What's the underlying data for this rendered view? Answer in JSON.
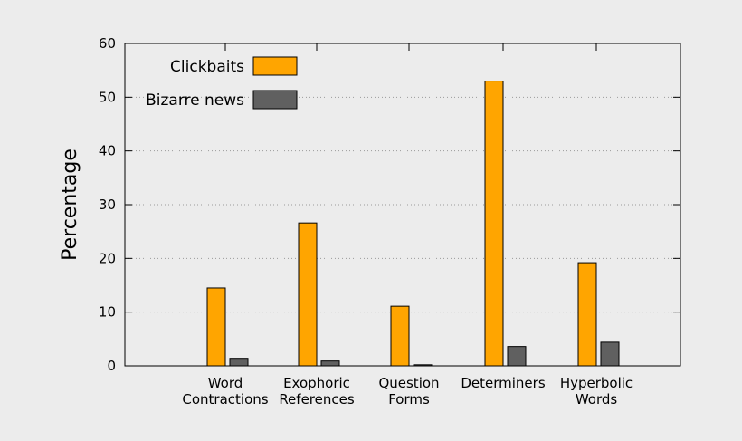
{
  "chart_data": {
    "type": "bar",
    "title": "",
    "xlabel": "",
    "ylabel": "Percentage",
    "ylim": [
      0,
      60
    ],
    "yticks": [
      0,
      10,
      20,
      30,
      40,
      50,
      60
    ],
    "grid": true,
    "legend_position": "top-left",
    "categories": [
      [
        "Word",
        "Contractions"
      ],
      [
        "Exophoric",
        "References"
      ],
      [
        "Question",
        "Forms"
      ],
      [
        "Determiners"
      ],
      [
        "Hyperbolic",
        "Words"
      ]
    ],
    "series": [
      {
        "name": "Clickbaits",
        "color": "#ffa500",
        "values": [
          14.5,
          26.6,
          11.1,
          53.0,
          19.2
        ]
      },
      {
        "name": "Bizarre news",
        "color": "#606060",
        "values": [
          1.4,
          0.9,
          0.2,
          3.6,
          4.4
        ]
      }
    ]
  }
}
